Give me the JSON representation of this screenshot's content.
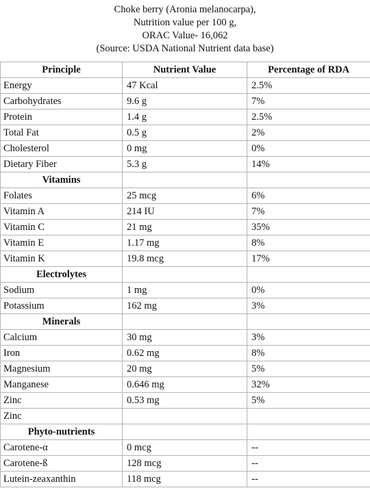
{
  "title_lines": [
    "Choke berry (Aronia melanocarpa),",
    "Nutrition value per 100 g,",
    "ORAC Value- 16,062",
    "(Source: USDA National Nutrient data base)"
  ],
  "headers": [
    "Principle",
    "Nutrient Value",
    "Percentage of RDA"
  ],
  "rows": [
    {
      "type": "data",
      "cells": [
        "Energy",
        "47 Kcal",
        "2.5%"
      ]
    },
    {
      "type": "data",
      "cells": [
        "Carbohydrates",
        "9.6 g",
        "7%"
      ]
    },
    {
      "type": "data",
      "cells": [
        "Protein",
        "1.4 g",
        "2.5%"
      ]
    },
    {
      "type": "data",
      "cells": [
        "Total Fat",
        "0.5 g",
        "2%"
      ]
    },
    {
      "type": "data",
      "cells": [
        "Cholesterol",
        "0 mg",
        "0%"
      ]
    },
    {
      "type": "data",
      "cells": [
        "Dietary Fiber",
        "5.3 g",
        "14%"
      ]
    },
    {
      "type": "section",
      "label": "Vitamins"
    },
    {
      "type": "data",
      "cells": [
        "Folates",
        "25 mcg",
        "6%"
      ]
    },
    {
      "type": "data",
      "cells": [
        "Vitamin A",
        "214 IU",
        "7%"
      ]
    },
    {
      "type": "data",
      "cells": [
        "Vitamin C",
        "21 mg",
        "35%"
      ]
    },
    {
      "type": "data",
      "cells": [
        "Vitamin E",
        "1.17 mg",
        "8%"
      ]
    },
    {
      "type": "data",
      "cells": [
        "Vitamin K",
        "19.8 mcg",
        "17%"
      ]
    },
    {
      "type": "section",
      "label": "Electrolytes"
    },
    {
      "type": "data",
      "cells": [
        "Sodium",
        "1 mg",
        "0%"
      ]
    },
    {
      "type": "data",
      "cells": [
        "Potassium",
        "162 mg",
        "3%"
      ]
    },
    {
      "type": "section",
      "label": "Minerals"
    },
    {
      "type": "data",
      "cells": [
        "Calcium",
        "30 mg",
        "3%"
      ]
    },
    {
      "type": "data",
      "cells": [
        "Iron",
        "0.62 mg",
        "8%"
      ]
    },
    {
      "type": "data",
      "cells": [
        "Magnesium",
        "20 mg",
        "5%"
      ]
    },
    {
      "type": "data",
      "cells": [
        "Manganese",
        "0.646 mg",
        "32%"
      ]
    },
    {
      "type": "data",
      "cells": [
        "Zinc",
        "0.53 mg",
        "5%"
      ]
    },
    {
      "type": "data",
      "cells": [
        "Zinc",
        "",
        ""
      ]
    },
    {
      "type": "section",
      "label": "Phyto-nutrients"
    },
    {
      "type": "data",
      "cells": [
        "Carotene-α",
        "0 mcg",
        "--"
      ]
    },
    {
      "type": "data",
      "cells": [
        "Carotene-ß",
        "128 mcg",
        "--"
      ]
    },
    {
      "type": "data",
      "cells": [
        "Lutein-zeaxanthin",
        "118 mcg",
        "--"
      ]
    }
  ]
}
